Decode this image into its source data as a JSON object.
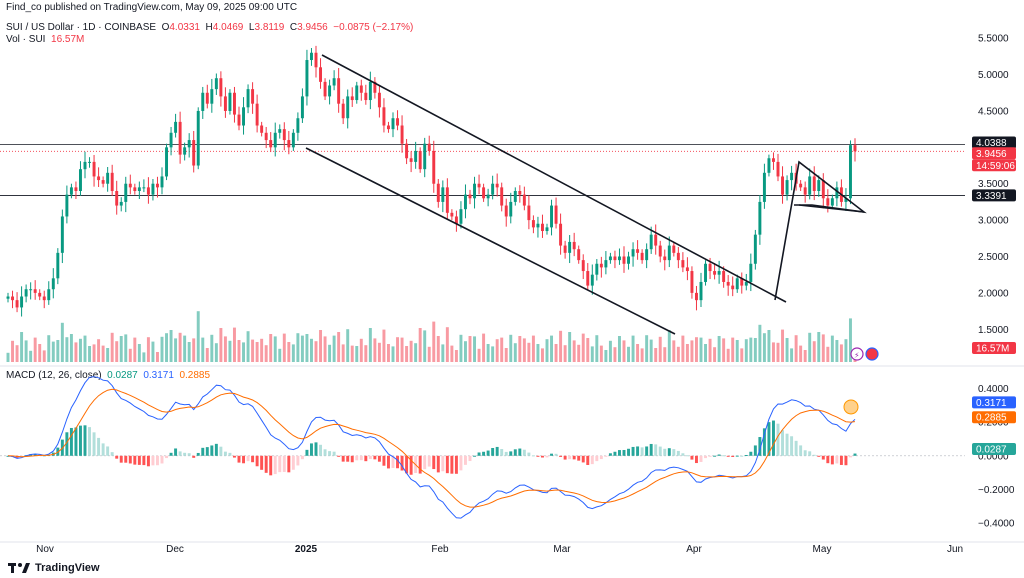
{
  "header": {
    "publisher_line": "Find_co published on TradingView.com, May 09, 2025 09:00 UTC"
  },
  "legend": {
    "symbol": "SUI / US Dollar · 1D · COINBASE",
    "open_label": "O",
    "open": "4.0331",
    "high_label": "H",
    "high": "4.0469",
    "low_label": "L",
    "low": "3.8119",
    "close_label": "C",
    "close": "3.9456",
    "change": "−0.0875 (−2.17%)",
    "vol_label": "Vol · SUI",
    "vol_value": "16.57M"
  },
  "macd_legend": {
    "label": "MACD (12, 26, close)",
    "hist": "0.0287",
    "macd": "0.3171",
    "signal": "0.2885"
  },
  "price_tags": {
    "resistance": "4.0388",
    "last": "3.9456",
    "countdown": "14:59:06",
    "support": "3.3391",
    "volume": "16.57M",
    "macd": "0.3171",
    "signal": "0.2885",
    "hist": "0.0287"
  },
  "footer": {
    "brand": "TradingView"
  },
  "colors": {
    "up": "#089981",
    "down": "#f23645",
    "macd": "#2962ff",
    "signal": "#ff6d00"
  },
  "chart_data": [
    {
      "type": "candlestick",
      "title": "SUI / US Dollar · 1D · COINBASE",
      "x_ticks": [
        "Nov",
        "Dec",
        "2025",
        "Feb",
        "Mar",
        "Apr",
        "May",
        "Jun"
      ],
      "y_ticks": [
        "5.5000",
        "5.0000",
        "4.5000",
        "4.0000",
        "3.5000",
        "3.0000",
        "2.5000",
        "2.0000",
        "1.5000"
      ],
      "ylim": [
        1.05,
        5.75
      ],
      "horizontal_levels": [
        4.0388,
        3.3391
      ],
      "closes": [
        1.95,
        1.9,
        1.8,
        1.95,
        2.05,
        2.05,
        2.0,
        1.95,
        1.9,
        2.05,
        2.2,
        2.55,
        3.05,
        3.35,
        3.45,
        3.4,
        3.7,
        3.8,
        3.8,
        3.6,
        3.55,
        3.5,
        3.65,
        3.4,
        3.2,
        3.25,
        3.5,
        3.45,
        3.4,
        3.45,
        3.45,
        3.35,
        3.5,
        3.45,
        3.6,
        4.0,
        4.2,
        4.35,
        3.9,
        4.0,
        4.1,
        3.75,
        4.5,
        4.75,
        4.6,
        4.8,
        4.95,
        4.7,
        4.5,
        4.75,
        4.45,
        4.3,
        4.55,
        4.8,
        4.6,
        4.3,
        4.2,
        4.1,
        4.0,
        4.2,
        4.25,
        4.1,
        4.0,
        4.2,
        4.4,
        4.7,
        5.2,
        5.3,
        5.1,
        4.9,
        4.7,
        4.85,
        4.95,
        4.6,
        4.4,
        4.7,
        4.65,
        4.85,
        4.75,
        4.65,
        4.9,
        4.75,
        4.55,
        4.3,
        4.25,
        4.4,
        4.3,
        4.05,
        3.85,
        3.8,
        3.95,
        3.7,
        4.05,
        3.95,
        3.5,
        3.25,
        3.45,
        3.1,
        3.05,
        2.95,
        3.15,
        3.35,
        3.3,
        3.5,
        3.45,
        3.3,
        3.35,
        3.5,
        3.45,
        3.2,
        3.05,
        3.25,
        3.4,
        3.35,
        3.2,
        3.0,
        2.9,
        2.95,
        2.85,
        2.9,
        3.2,
        2.95,
        2.65,
        2.55,
        2.7,
        2.6,
        2.45,
        2.3,
        2.1,
        2.25,
        2.4,
        2.35,
        2.45,
        2.5,
        2.45,
        2.5,
        2.4,
        2.5,
        2.6,
        2.55,
        2.45,
        2.6,
        2.8,
        2.65,
        2.5,
        2.45,
        2.65,
        2.55,
        2.45,
        2.35,
        2.3,
        2.0,
        1.9,
        2.15,
        2.4,
        2.3,
        2.25,
        2.3,
        2.15,
        2.1,
        2.05,
        2.2,
        2.1,
        2.15,
        2.4,
        2.8,
        3.25,
        3.65,
        3.85,
        3.8,
        3.6,
        3.35,
        3.55,
        3.65,
        3.5,
        3.45,
        3.35,
        3.6,
        3.4,
        3.55,
        3.3,
        3.2,
        3.3,
        3.45,
        3.25,
        3.3,
        4.03,
        3.9456
      ]
    },
    {
      "type": "bar",
      "title": "Vol · SUI",
      "last_value": "16.57M"
    },
    {
      "type": "line",
      "title": "MACD (12, 26, close)",
      "y_ticks": [
        "0.4000",
        "0.2000",
        "0.0000",
        "−0.2000",
        "−0.4000"
      ],
      "ylim": [
        -0.5,
        0.45
      ],
      "series": [
        {
          "name": "MACD",
          "last": 0.3171
        },
        {
          "name": "Signal",
          "last": 0.2885
        },
        {
          "name": "Histogram",
          "last": 0.0287
        }
      ]
    }
  ]
}
